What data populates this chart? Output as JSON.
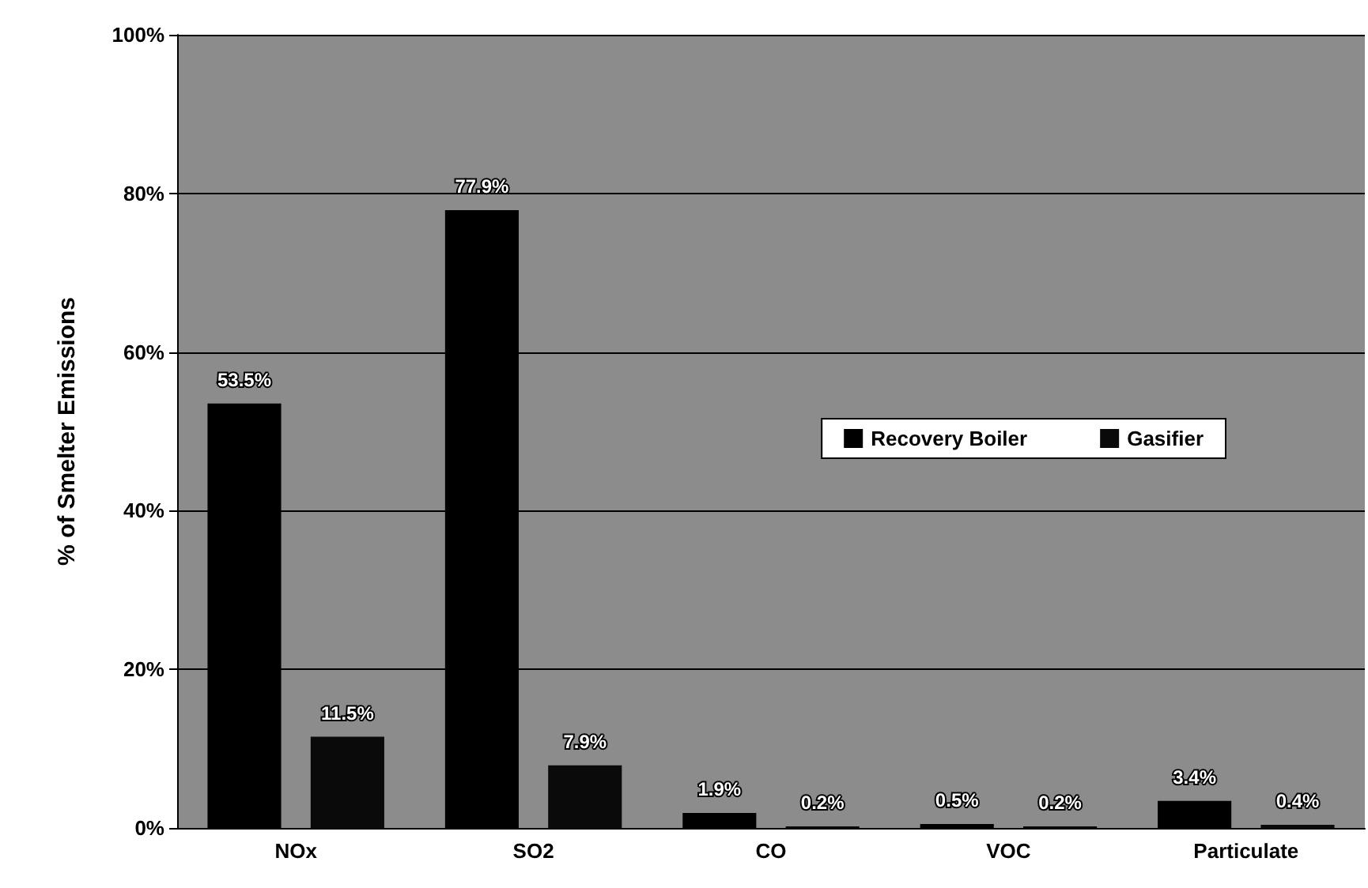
{
  "chart_data": {
    "type": "bar",
    "ylabel": "% of Smelter Emissions",
    "categories": [
      "NOx",
      "SO2",
      "CO",
      "VOC",
      "Particulate"
    ],
    "series": [
      {
        "name": "Recovery Boiler",
        "color": "#000000",
        "values": [
          53.5,
          77.9,
          1.9,
          0.5,
          3.4
        ],
        "value_labels": [
          "53.5%",
          "77.9%",
          "1.9%",
          "0.5%",
          "3.4%"
        ]
      },
      {
        "name": "Gasifier",
        "color": "#0a0a0a",
        "values": [
          11.5,
          7.9,
          0.2,
          0.2,
          0.4
        ],
        "value_labels": [
          "11.5%",
          "7.9%",
          "0.2%",
          "0.2%",
          "0.4%"
        ]
      }
    ],
    "ylim": [
      0,
      100
    ],
    "yticks": [
      {
        "value": 0,
        "label": "0%"
      },
      {
        "value": 20,
        "label": "20%"
      },
      {
        "value": 40,
        "label": "40%"
      },
      {
        "value": 60,
        "label": "60%"
      },
      {
        "value": 80,
        "label": "80%"
      },
      {
        "value": 100,
        "label": "100%"
      }
    ],
    "grid": "y",
    "legend": "right"
  }
}
